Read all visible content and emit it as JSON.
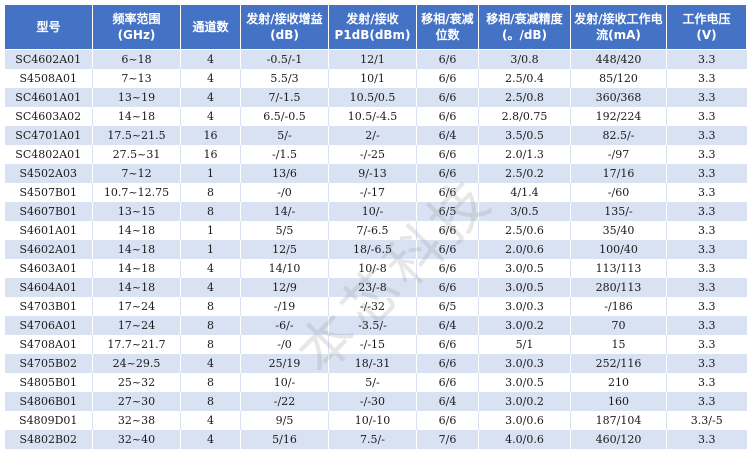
{
  "headers": [
    "型号",
    "频率范围\n(GHz)",
    "通道数",
    "发射/接收增益(dB)",
    "发射/接收P1dB(dBm)",
    "移相/衰减位数",
    "移相/衰减精度(。/dB)",
    "发射/接收工作电流(mA)",
    "工作电压\n(V)"
  ],
  "rows": [
    [
      "SC4602A01",
      "6~18",
      "4",
      "-0.5/-1",
      "12/1",
      "6/6",
      "3/0.8",
      "448/420",
      "3.3"
    ],
    [
      "S4508A01",
      "7~13",
      "4",
      "5.5/3",
      "10/1",
      "6/6",
      "2.5/0.4",
      "85/120",
      "3.3"
    ],
    [
      "SC4601A01",
      "13~19",
      "4",
      "7/-1.5",
      "10.5/0.5",
      "6/6",
      "2.5/0.8",
      "360/368",
      "3.3"
    ],
    [
      "SC4603A02",
      "14~18",
      "4",
      "6.5/-0.5",
      "10.5/-4.5",
      "6/6",
      "2.8/0.75",
      "192/224",
      "3.3"
    ],
    [
      "SC4701A01",
      "17.5~21.5",
      "16",
      "5/-",
      "2/-",
      "6/4",
      "3.5/0.5",
      "82.5/-",
      "3.3"
    ],
    [
      "SC4802A01",
      "27.5~31",
      "16",
      "-/1.5",
      "-/-25",
      "6/6",
      "2.0/1.3",
      "-/97",
      "3.3"
    ],
    [
      "S4502A03",
      "7~12",
      "1",
      "13/6",
      "9/-13",
      "6/6",
      "2.5/0.2",
      "17/16",
      "3.3"
    ],
    [
      "S4507B01",
      "10.7~12.75",
      "8",
      "-/0",
      "-/-17",
      "6/6",
      "4/1.4",
      "-/60",
      "3.3"
    ],
    [
      "S4607B01",
      "13~15",
      "8",
      "14/-",
      "10/-",
      "6/5",
      "3/0.5",
      "135/-",
      "3.3"
    ],
    [
      "S4601A01",
      "14~18",
      "1",
      "5/5",
      "7/-6.5",
      "6/6",
      "2.5/0.6",
      "35/40",
      "3.3"
    ],
    [
      "S4602A01",
      "14~18",
      "1",
      "12/5",
      "18/-6.5",
      "6/6",
      "2.0/0.6",
      "100/40",
      "3.3"
    ],
    [
      "S4603A01",
      "14~18",
      "4",
      "14/10",
      "10/-8",
      "6/6",
      "3.0/0.5",
      "113/113",
      "3.3"
    ],
    [
      "S4604A01",
      "14~18",
      "4",
      "12/9",
      "23/-8",
      "6/6",
      "3.0/0.5",
      "280/113",
      "3.3"
    ],
    [
      "S4703B01",
      "17~24",
      "8",
      "-/19",
      "-/-32",
      "6/5",
      "3.0/0.3",
      "-/186",
      "3.3"
    ],
    [
      "S4706A01",
      "17~24",
      "8",
      "-6/-",
      "-3.5/-",
      "6/4",
      "3.0/0.2",
      "70",
      "3.3"
    ],
    [
      "S4708A01",
      "17.7~21.7",
      "8",
      "-/0",
      "-/-15",
      "6/6",
      "5/1",
      "15",
      "3.3"
    ],
    [
      "S4705B02",
      "24~29.5",
      "4",
      "25/19",
      "18/-31",
      "6/6",
      "3.0/0.3",
      "252/116",
      "3.3"
    ],
    [
      "S4805B01",
      "25~32",
      "8",
      "10/-",
      "5/-",
      "6/6",
      "3.0/0.5",
      "210",
      "3.3"
    ],
    [
      "S4806B01",
      "27~30",
      "8",
      "-/22",
      "-/-30",
      "6/4",
      "3.0/0.2",
      "160",
      "3.3"
    ],
    [
      "S4809D01",
      "32~38",
      "4",
      "9/5",
      "10/-10",
      "6/6",
      "3.0/0.6",
      "187/104",
      "3.3/-5"
    ],
    [
      "S4802B02",
      "32~40",
      "4",
      "5/16",
      "7.5/-",
      "7/6",
      "4.0/0.6",
      "460/120",
      "3.3"
    ]
  ],
  "watermark": "本芯科技"
}
